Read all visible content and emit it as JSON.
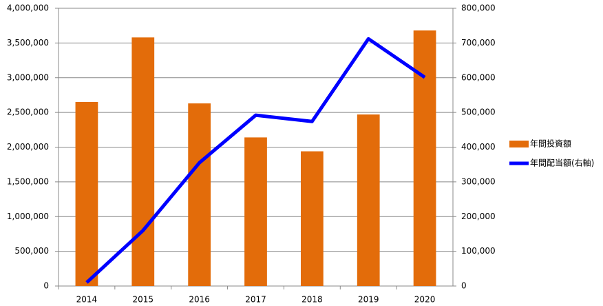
{
  "chart_data": {
    "type": "combo",
    "categories": [
      "2014",
      "2015",
      "2016",
      "2017",
      "2018",
      "2019",
      "2020"
    ],
    "series": [
      {
        "name": "年間投資額",
        "type": "bar",
        "color": "#e36c0a",
        "values": [
          2650000,
          3580000,
          2630000,
          2140000,
          1940000,
          2470000,
          3680000
        ]
      },
      {
        "name": "年間配当額(右軸)",
        "type": "line",
        "axis": "y2",
        "color": "#0000ff",
        "values": [
          10000,
          160000,
          355000,
          492000,
          474000,
          712000,
          601000
        ]
      }
    ],
    "ylim": [
      0,
      4000000
    ],
    "yticks": [
      0,
      {
        "value": 500000,
        "label": "500,000"
      },
      {
        "value": 1000000,
        "label": "1,000,000"
      },
      {
        "value": 1500000,
        "label": "1,500,000"
      },
      {
        "value": 2000000,
        "label": "2,000,000"
      },
      {
        "value": 2500000,
        "label": "2,500,000"
      },
      {
        "value": 3000000,
        "label": "3,000,000"
      },
      {
        "value": 3500000,
        "label": "3,500,000"
      },
      {
        "value": 4000000,
        "label": "4,000,000"
      }
    ],
    "y2lim": [
      0,
      800000
    ],
    "y2ticks": [
      0,
      {
        "value": 100000,
        "label": "100,000"
      },
      {
        "value": 200000,
        "label": "200,000"
      },
      {
        "value": 300000,
        "label": "300,000"
      },
      {
        "value": 400000,
        "label": "400,000"
      },
      {
        "value": 500000,
        "label": "500,000"
      },
      {
        "value": 600000,
        "label": "600,000"
      },
      {
        "value": 700000,
        "label": "700,000"
      },
      {
        "value": 800000,
        "label": "800,000"
      }
    ],
    "grid": true,
    "legend": "right"
  }
}
